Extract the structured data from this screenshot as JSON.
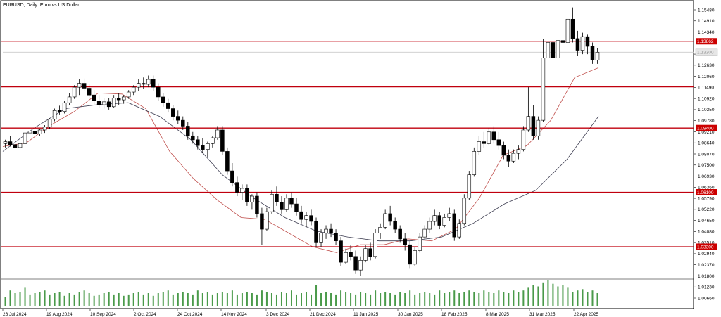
{
  "chart_data": {
    "type": "candlestick",
    "title": "EURUSD, Daily:  Euro vs US Dollar",
    "instrument": "EURUSD",
    "timeframe": "Daily",
    "description": "Euro vs US Dollar",
    "ylim": [
      1.0,
      1.162
    ],
    "y_ticks": [
      "1.15480",
      "1.14910",
      "1.14340",
      "1.13200",
      "1.12630",
      "1.12060",
      "1.11490",
      "1.10920",
      "1.10350",
      "1.09780",
      "1.09210",
      "1.08640",
      "1.08070",
      "1.07500",
      "1.06930",
      "1.06360",
      "1.05790",
      "1.05220",
      "1.04650",
      "1.04080",
      "1.03510",
      "1.02940",
      "1.02370",
      "1.01800",
      "1.01230",
      "1.00660"
    ],
    "x_ticks": [
      "26 Jul 2024",
      "19 Aug 2024",
      "10 Sep 2024",
      "2 Oct 2024",
      "24 Oct 2024",
      "14 Nov 2024",
      "3 Dec 2024",
      "21 Dec 2024",
      "11 Jan 2025",
      "30 Jan 2025",
      "18 Feb 2025",
      "8 Mar 2025",
      "31 Mar 2025",
      "22 Apr 2025"
    ],
    "horizontal_levels": [
      {
        "label": "1.13862",
        "value": 1.13862
      },
      {
        "label": "",
        "value": 1.1152
      },
      {
        "label": "1.09400",
        "value": 1.094
      },
      {
        "label": "1.06100",
        "value": 1.061
      },
      {
        "label": "1.03300",
        "value": 1.033
      }
    ],
    "current_price_label": "1.13300",
    "current_price": 1.133,
    "colors": {
      "candle": "#000000",
      "level_line": "#c0000e",
      "level_label_bg": "#cc0000",
      "ma_fast": "#c0504d",
      "ma_slow": "#3c3c50",
      "volume": "#4a9a4a",
      "grid_frame": "#000000",
      "current_price_line": "#cccccc"
    },
    "ma_fast_path": [
      [
        1.0845,
        1.0865
      ],
      [
        1.0955,
        1.1025
      ],
      [
        1.112,
        1.1115
      ],
      [
        1.104,
        1.082
      ],
      [
        1.068,
        1.057
      ],
      [
        1.048,
        1.047
      ],
      [
        1.04,
        1.033
      ],
      [
        1.03,
        1.034
      ],
      [
        1.034,
        1.037
      ],
      [
        1.036,
        1.042
      ],
      [
        1.058,
        1.08
      ],
      [
        1.085,
        1.098
      ],
      [
        1.12,
        1.125
      ]
    ],
    "ma_slow_path": [
      [
        1.082,
        1.094
      ],
      [
        1.104,
        1.106
      ],
      [
        1.107,
        1.1
      ],
      [
        1.088,
        1.07
      ],
      [
        1.058,
        1.048
      ],
      [
        1.041,
        1.038
      ],
      [
        1.036,
        1.036
      ],
      [
        1.038,
        1.045
      ],
      [
        1.055,
        1.062
      ],
      [
        1.078,
        1.1
      ]
    ],
    "candles": [
      [
        1.086,
        1.088,
        1.084,
        1.087
      ],
      [
        1.087,
        1.09,
        1.0845,
        1.0855
      ],
      [
        1.0855,
        1.088,
        1.083,
        1.084
      ],
      [
        1.084,
        1.087,
        1.0825,
        1.086
      ],
      [
        1.086,
        1.0925,
        1.0855,
        1.0915
      ],
      [
        1.0915,
        1.094,
        1.0905,
        1.0925
      ],
      [
        1.0925,
        1.093,
        1.0895,
        1.091
      ],
      [
        1.091,
        1.0935,
        1.09,
        1.093
      ],
      [
        1.093,
        1.0955,
        1.0915,
        1.0945
      ],
      [
        1.0945,
        1.099,
        1.0935,
        1.0985
      ],
      [
        1.0985,
        1.104,
        1.0975,
        1.103
      ],
      [
        1.103,
        1.1055,
        1.101,
        1.1025
      ],
      [
        1.1025,
        1.108,
        1.1015,
        1.107
      ],
      [
        1.107,
        1.112,
        1.106,
        1.11
      ],
      [
        1.11,
        1.116,
        1.109,
        1.115
      ],
      [
        1.115,
        1.119,
        1.111,
        1.117
      ],
      [
        1.117,
        1.1195,
        1.113,
        1.1145
      ],
      [
        1.1145,
        1.1165,
        1.109,
        1.111
      ],
      [
        1.111,
        1.1135,
        1.106,
        1.108
      ],
      [
        1.108,
        1.111,
        1.1045,
        1.106
      ],
      [
        1.106,
        1.1095,
        1.104,
        1.1075
      ],
      [
        1.1075,
        1.1095,
        1.1035,
        1.105
      ],
      [
        1.105,
        1.111,
        1.1045,
        1.1095
      ],
      [
        1.1095,
        1.112,
        1.106,
        1.1085
      ],
      [
        1.1085,
        1.111,
        1.1065,
        1.11
      ],
      [
        1.11,
        1.1135,
        1.109,
        1.1125
      ],
      [
        1.1125,
        1.116,
        1.111,
        1.115
      ],
      [
        1.115,
        1.119,
        1.113,
        1.117
      ],
      [
        1.117,
        1.12,
        1.114,
        1.1165
      ],
      [
        1.1165,
        1.121,
        1.115,
        1.119
      ],
      [
        1.119,
        1.121,
        1.113,
        1.115
      ],
      [
        1.115,
        1.117,
        1.108,
        1.11
      ],
      [
        1.11,
        1.112,
        1.105,
        1.107
      ],
      [
        1.107,
        1.109,
        1.102,
        1.104
      ],
      [
        1.104,
        1.106,
        1.098,
        1.1
      ],
      [
        1.1,
        1.103,
        1.096,
        1.098
      ],
      [
        1.098,
        1.1,
        1.093,
        1.095
      ],
      [
        1.095,
        1.097,
        1.088,
        1.09
      ],
      [
        1.09,
        1.092,
        1.086,
        1.088
      ],
      [
        1.088,
        1.09,
        1.083,
        1.085
      ],
      [
        1.085,
        1.089,
        1.081,
        1.083
      ],
      [
        1.083,
        1.087,
        1.079,
        1.086
      ],
      [
        1.086,
        1.09,
        1.084,
        1.089
      ],
      [
        1.089,
        1.095,
        1.088,
        1.093
      ],
      [
        1.093,
        1.095,
        1.08,
        1.082
      ],
      [
        1.082,
        1.084,
        1.07,
        1.072
      ],
      [
        1.072,
        1.076,
        1.064,
        1.066
      ],
      [
        1.066,
        1.069,
        1.059,
        1.061
      ],
      [
        1.061,
        1.065,
        1.057,
        1.063
      ],
      [
        1.063,
        1.065,
        1.054,
        1.056
      ],
      [
        1.056,
        1.06,
        1.052,
        1.059
      ],
      [
        1.059,
        1.061,
        1.048,
        1.05
      ],
      [
        1.05,
        1.053,
        1.034,
        1.042
      ],
      [
        1.042,
        1.053,
        1.041,
        1.051
      ],
      [
        1.051,
        1.062,
        1.05,
        1.06
      ],
      [
        1.06,
        1.064,
        1.054,
        1.056
      ],
      [
        1.056,
        1.059,
        1.05,
        1.052
      ],
      [
        1.052,
        1.06,
        1.051,
        1.058
      ],
      [
        1.058,
        1.061,
        1.053,
        1.055
      ],
      [
        1.055,
        1.058,
        1.049,
        1.051
      ],
      [
        1.051,
        1.054,
        1.045,
        1.047
      ],
      [
        1.047,
        1.051,
        1.043,
        1.049
      ],
      [
        1.049,
        1.052,
        1.044,
        1.046
      ],
      [
        1.046,
        1.048,
        1.033,
        1.035
      ],
      [
        1.035,
        1.042,
        1.033,
        1.04
      ],
      [
        1.04,
        1.044,
        1.037,
        1.042
      ],
      [
        1.042,
        1.045,
        1.038,
        1.04
      ],
      [
        1.04,
        1.042,
        1.034,
        1.036
      ],
      [
        1.036,
        1.038,
        1.023,
        1.025
      ],
      [
        1.025,
        1.032,
        1.024,
        1.03
      ],
      [
        1.03,
        1.034,
        1.026,
        1.028
      ],
      [
        1.028,
        1.031,
        1.019,
        1.021
      ],
      [
        1.021,
        1.028,
        1.018,
        1.026
      ],
      [
        1.026,
        1.034,
        1.025,
        1.032
      ],
      [
        1.032,
        1.035,
        1.026,
        1.028
      ],
      [
        1.028,
        1.042,
        1.027,
        1.04
      ],
      [
        1.04,
        1.045,
        1.037,
        1.043
      ],
      [
        1.043,
        1.052,
        1.042,
        1.05
      ],
      [
        1.05,
        1.054,
        1.044,
        1.046
      ],
      [
        1.046,
        1.048,
        1.04,
        1.042
      ],
      [
        1.042,
        1.044,
        1.035,
        1.037
      ],
      [
        1.037,
        1.04,
        1.031,
        1.034
      ],
      [
        1.034,
        1.036,
        1.022,
        1.024
      ],
      [
        1.024,
        1.033,
        1.023,
        1.031
      ],
      [
        1.031,
        1.04,
        1.03,
        1.038
      ],
      [
        1.038,
        1.044,
        1.037,
        1.042
      ],
      [
        1.042,
        1.048,
        1.04,
        1.046
      ],
      [
        1.046,
        1.052,
        1.044,
        1.049
      ],
      [
        1.049,
        1.051,
        1.042,
        1.044
      ],
      [
        1.044,
        1.05,
        1.043,
        1.048
      ],
      [
        1.048,
        1.053,
        1.046,
        1.05
      ],
      [
        1.05,
        1.052,
        1.036,
        1.038
      ],
      [
        1.038,
        1.047,
        1.037,
        1.045
      ],
      [
        1.045,
        1.06,
        1.044,
        1.058
      ],
      [
        1.058,
        1.072,
        1.057,
        1.07
      ],
      [
        1.07,
        1.084,
        1.069,
        1.082
      ],
      [
        1.082,
        1.09,
        1.08,
        1.087
      ],
      [
        1.087,
        1.092,
        1.084,
        1.086
      ],
      [
        1.086,
        1.094,
        1.085,
        1.092
      ],
      [
        1.092,
        1.095,
        1.086,
        1.088
      ],
      [
        1.088,
        1.092,
        1.083,
        1.085
      ],
      [
        1.085,
        1.087,
        1.078,
        1.08
      ],
      [
        1.08,
        1.083,
        1.074,
        1.077
      ],
      [
        1.077,
        1.083,
        1.076,
        1.081
      ],
      [
        1.081,
        1.085,
        1.078,
        1.083
      ],
      [
        1.083,
        1.095,
        1.082,
        1.093
      ],
      [
        1.093,
        1.115,
        1.092,
        1.1
      ],
      [
        1.1,
        1.106,
        1.088,
        1.09
      ],
      [
        1.09,
        1.1,
        1.088,
        1.098
      ],
      [
        1.098,
        1.14,
        1.097,
        1.13
      ],
      [
        1.13,
        1.14,
        1.12,
        1.138
      ],
      [
        1.138,
        1.147,
        1.125,
        1.13
      ],
      [
        1.13,
        1.142,
        1.128,
        1.139
      ],
      [
        1.139,
        1.143,
        1.135,
        1.138
      ],
      [
        1.138,
        1.157,
        1.137,
        1.15
      ],
      [
        1.15,
        1.156,
        1.138,
        1.14
      ],
      [
        1.14,
        1.144,
        1.131,
        1.134
      ],
      [
        1.134,
        1.143,
        1.132,
        1.141
      ],
      [
        1.141,
        1.142,
        1.132,
        1.136
      ],
      [
        1.136,
        1.138,
        1.127,
        1.129
      ],
      [
        1.129,
        1.135,
        1.127,
        1.133
      ]
    ],
    "volumes": [
      0.35,
      0.6,
      0.5,
      0.55,
      0.7,
      0.45,
      0.5,
      0.55,
      0.6,
      0.45,
      0.5,
      0.55,
      0.4,
      0.5,
      0.45,
      0.55,
      0.6,
      0.5,
      0.4,
      0.45,
      0.5,
      0.55,
      0.45,
      0.5,
      0.4,
      0.45,
      0.5,
      0.55,
      0.45,
      0.5,
      0.4,
      0.5,
      0.55,
      0.6,
      0.45,
      0.5,
      0.55,
      0.5,
      0.45,
      0.6,
      0.5,
      0.55,
      0.45,
      0.5,
      0.55,
      0.5,
      0.6,
      0.45,
      0.5,
      0.55,
      0.5,
      0.45,
      0.6,
      0.55,
      0.5,
      0.45,
      0.55,
      0.5,
      0.6,
      0.45,
      0.5,
      0.55,
      0.45,
      0.8,
      0.5,
      0.55,
      0.5,
      0.45,
      0.6,
      0.55,
      0.5,
      0.45,
      0.55,
      0.5,
      0.45,
      0.6,
      0.5,
      0.55,
      0.5,
      0.45,
      0.55,
      0.5,
      0.6,
      0.45,
      0.5,
      0.55,
      0.5,
      0.45,
      0.6,
      0.5,
      0.55,
      0.6,
      0.5,
      0.55,
      0.6,
      0.55,
      0.5,
      0.6,
      0.55,
      0.5,
      0.6,
      0.55,
      0.5,
      0.6,
      0.55,
      0.6,
      0.7,
      0.8,
      0.75,
      0.9,
      1.0,
      0.85,
      0.75,
      0.8,
      0.7,
      0.55,
      0.6,
      0.65,
      0.55,
      0.6,
      0.5
    ]
  }
}
